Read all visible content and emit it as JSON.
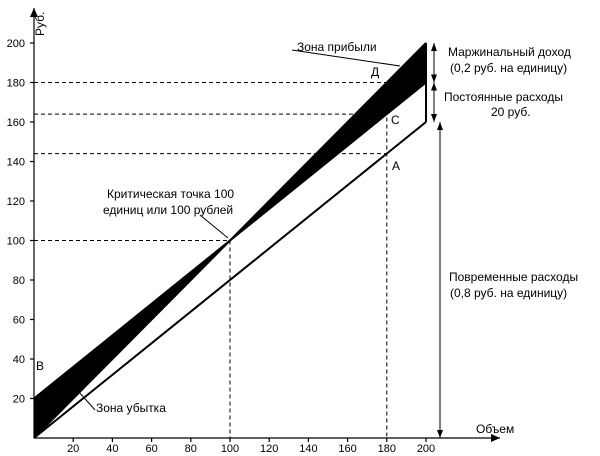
{
  "chart_data": {
    "type": "line",
    "ylabel": "Руб.",
    "xlabel": "Объем",
    "xlim": [
      0,
      200
    ],
    "ylim": [
      0,
      200
    ],
    "x_ticks": [
      "20",
      "40",
      "60",
      "80",
      "100",
      "120",
      "140",
      "160",
      "180",
      "200"
    ],
    "y_ticks": [
      "20",
      "40",
      "60",
      "80",
      "100",
      "120",
      "140",
      "160",
      "180",
      "200"
    ],
    "x_tick_values": [
      20,
      40,
      60,
      80,
      100,
      120,
      140,
      160,
      180,
      200
    ],
    "y_tick_values": [
      20,
      40,
      60,
      80,
      100,
      120,
      140,
      160,
      180,
      200
    ],
    "series": [
      {
        "x": [
          0,
          200
        ],
        "y": [
          0,
          200
        ]
      },
      {
        "x": [
          0,
          200
        ],
        "y": [
          20,
          180
        ]
      },
      {
        "x": [
          0,
          200
        ],
        "y": [
          0,
          160
        ]
      }
    ],
    "guide_lines": {
      "horizontal": [
        180,
        164,
        144,
        100
      ],
      "vertical": [
        100,
        180
      ]
    },
    "points": [
      {
        "label": "Д",
        "x": 180,
        "y": 180
      },
      {
        "label": "C",
        "x": 180,
        "y": 164
      },
      {
        "label": "A",
        "x": 180,
        "y": 144
      },
      {
        "label": "B",
        "x": 0,
        "y": 20
      }
    ],
    "annotations": {
      "profit_zone": "Зона прибыли",
      "loss_zone": "Зона убытка",
      "break_even_line1": "Критическая точка 100",
      "break_even_line2": "единиц или 100 рублей",
      "marginal_line1": "Маржинальный доход",
      "marginal_line2": "(0,2 руб. на единицу)",
      "fixed_line1": "Постоянные расходы",
      "fixed_line2": "20 руб.",
      "variable_line1": "Повременные расходы",
      "variable_line2": "(0,8 руб. на единицу)"
    }
  }
}
